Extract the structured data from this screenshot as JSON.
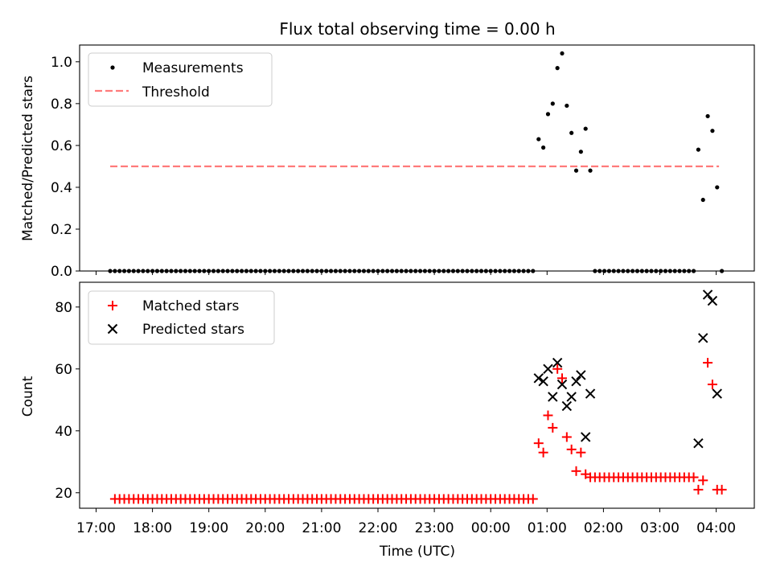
{
  "chart_data": [
    {
      "type": "scatter",
      "title": "Flux total observing time = 0.00 h",
      "xlabel": "",
      "ylabel": "Matched/Predicted stars",
      "ylim": [
        0,
        1.08
      ],
      "yticks": [
        0,
        0.2,
        0.4,
        0.6,
        0.8,
        1.0
      ],
      "ytick_labels": [
        "0.0",
        "0.2",
        "0.4",
        "0.6",
        "0.8",
        "1.0"
      ],
      "legend_placement": "upper-left",
      "legend": [
        {
          "label": "Measurements",
          "marker": "dot",
          "color": "#000000"
        },
        {
          "label": "Threshold",
          "marker": "dashed-line",
          "color": "#ff7b7b"
        }
      ],
      "threshold": {
        "value": 0.5,
        "x_start": "17:15",
        "x_end": "04:03",
        "color": "#ff7b7b"
      },
      "series": [
        {
          "name": "Measurements",
          "color": "#000000",
          "points_zero_range_1": {
            "start": "17:15",
            "end": "00:48",
            "step_minutes": 5,
            "y": 0
          },
          "points": [
            {
              "x": "00:51",
              "y": 0.63
            },
            {
              "x": "00:56",
              "y": 0.59
            },
            {
              "x": "01:01",
              "y": 0.75
            },
            {
              "x": "01:06",
              "y": 0.8
            },
            {
              "x": "01:11",
              "y": 0.97
            },
            {
              "x": "01:16",
              "y": 1.04
            },
            {
              "x": "01:21",
              "y": 0.79
            },
            {
              "x": "01:26",
              "y": 0.66
            },
            {
              "x": "01:31",
              "y": 0.48
            },
            {
              "x": "01:36",
              "y": 0.57
            },
            {
              "x": "01:41",
              "y": 0.68
            },
            {
              "x": "01:46",
              "y": 0.48
            },
            {
              "x": "03:41",
              "y": 0.58
            },
            {
              "x": "03:46",
              "y": 0.34
            },
            {
              "x": "03:51",
              "y": 0.74
            },
            {
              "x": "03:56",
              "y": 0.67
            },
            {
              "x": "04:01",
              "y": 0.4
            },
            {
              "x": "04:06",
              "y": 0.0
            }
          ],
          "points_zero_range_2": {
            "start": "01:51",
            "end": "03:36",
            "step_minutes": 5,
            "y": 0
          }
        }
      ]
    },
    {
      "type": "scatter",
      "title": "",
      "xlabel": "Time (UTC)",
      "ylabel": "Count",
      "ylim": [
        15,
        88
      ],
      "yticks": [
        20,
        40,
        60,
        80
      ],
      "ytick_labels": [
        "20",
        "40",
        "60",
        "80"
      ],
      "xticks": [
        "17:00",
        "18:00",
        "19:00",
        "20:00",
        "21:00",
        "22:00",
        "23:00",
        "00:00",
        "01:00",
        "02:00",
        "03:00",
        "04:00"
      ],
      "legend_placement": "upper-left",
      "legend": [
        {
          "label": "Matched stars",
          "marker": "plus",
          "color": "#ff0000"
        },
        {
          "label": "Predicted stars",
          "marker": "x",
          "color": "#000000"
        }
      ],
      "series": [
        {
          "name": "Matched stars",
          "color": "#ff0000",
          "constant_range_1": {
            "start": "17:20",
            "end": "00:48",
            "step_minutes": 5,
            "y": 18
          },
          "points": [
            {
              "x": "00:51",
              "y": 36
            },
            {
              "x": "00:56",
              "y": 33
            },
            {
              "x": "01:01",
              "y": 45
            },
            {
              "x": "01:06",
              "y": 41
            },
            {
              "x": "01:11",
              "y": 60
            },
            {
              "x": "01:16",
              "y": 57
            },
            {
              "x": "01:21",
              "y": 38
            },
            {
              "x": "01:26",
              "y": 34
            },
            {
              "x": "01:31",
              "y": 27
            },
            {
              "x": "01:36",
              "y": 33
            },
            {
              "x": "01:41",
              "y": 26
            },
            {
              "x": "01:46",
              "y": 25
            },
            {
              "x": "03:41",
              "y": 21
            },
            {
              "x": "03:46",
              "y": 24
            },
            {
              "x": "03:51",
              "y": 62
            },
            {
              "x": "03:56",
              "y": 55
            },
            {
              "x": "04:01",
              "y": 21
            },
            {
              "x": "04:06",
              "y": 21
            }
          ],
          "constant_range_2": {
            "start": "01:51",
            "end": "03:36",
            "step_minutes": 5,
            "y": 25
          }
        },
        {
          "name": "Predicted stars",
          "color": "#000000",
          "points": [
            {
              "x": "00:51",
              "y": 57
            },
            {
              "x": "00:56",
              "y": 56
            },
            {
              "x": "01:01",
              "y": 60
            },
            {
              "x": "01:06",
              "y": 51
            },
            {
              "x": "01:11",
              "y": 62
            },
            {
              "x": "01:16",
              "y": 55
            },
            {
              "x": "01:21",
              "y": 48
            },
            {
              "x": "01:26",
              "y": 51
            },
            {
              "x": "01:31",
              "y": 56
            },
            {
              "x": "01:36",
              "y": 58
            },
            {
              "x": "01:41",
              "y": 38
            },
            {
              "x": "01:46",
              "y": 52
            },
            {
              "x": "03:41",
              "y": 36
            },
            {
              "x": "03:46",
              "y": 70
            },
            {
              "x": "03:51",
              "y": 84
            },
            {
              "x": "03:56",
              "y": 82
            },
            {
              "x": "04:01",
              "y": 52
            }
          ]
        }
      ]
    }
  ]
}
